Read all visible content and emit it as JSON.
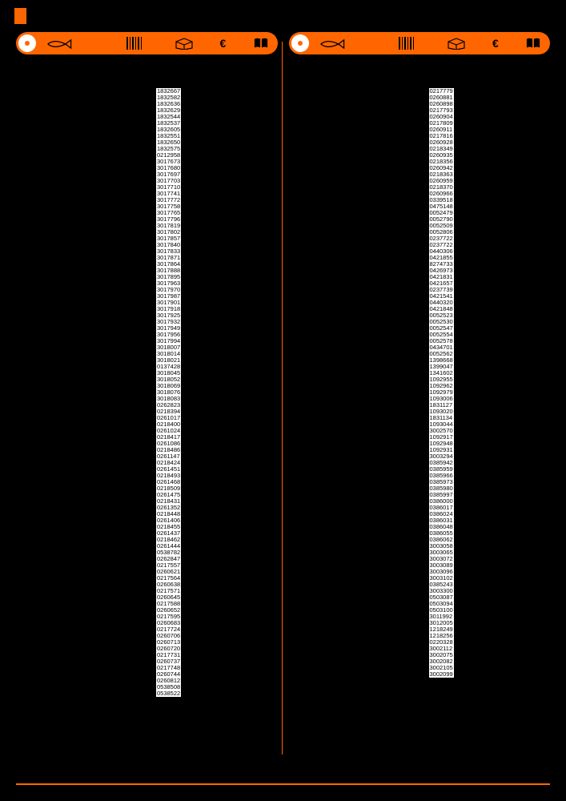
{
  "meta": {
    "background_color": "#000000",
    "accent_color": "#ff6600",
    "code_bg": "#ffffff",
    "code_color": "#000000",
    "code_fontsize": 7.5
  },
  "header_icons": [
    "fish-icon",
    "barcode-icon",
    "package-icon",
    "euro-icon",
    "catalog-icon"
  ],
  "left_codes": [
    "1832667",
    "1832582",
    "1832636",
    "1832629",
    "1832544",
    "1832537",
    "1832605",
    "1832551",
    "1832650",
    "1832575",
    "0212958",
    "3017673",
    "3017680",
    "3017697",
    "3017703",
    "3017710",
    "3017741",
    "3017772",
    "3017758",
    "3017765",
    "3017796",
    "3017819",
    "3017802",
    "3017857",
    "3017840",
    "3017833",
    "3017871",
    "3017864",
    "3017888",
    "3017895",
    "3017963",
    "3017970",
    "3017987",
    "3017901",
    "3017918",
    "3017925",
    "3017932",
    "3017949",
    "3017956",
    "3017994",
    "3018007",
    "3018014",
    "3018021",
    "0137428",
    "3018045",
    "3018052",
    "3018069",
    "3018076",
    "3018083",
    "0262823",
    "0218394",
    "0261017",
    "0218400",
    "0261024",
    "0218417",
    "0261086",
    "0218486",
    "0261147",
    "0218424",
    "0261451",
    "0218493",
    "0261468",
    "0218509",
    "0261475",
    "0218431",
    "0261352",
    "0218448",
    "0261406",
    "0218455",
    "0261437",
    "0218462",
    "0261444",
    "0538782",
    "0262847",
    "0217557",
    "0260621",
    "0217564",
    "0260638",
    "0217571",
    "0260645",
    "0217588",
    "0260652",
    "0217595",
    "0260683",
    "0217724",
    "0260706",
    "0260713",
    "0260720",
    "0217731",
    "0260737",
    "0217748",
    "0260744",
    "0260812",
    "0538508",
    "0538522"
  ],
  "right_codes": [
    "0217779",
    "0260881",
    "0260898",
    "0217793",
    "0260904",
    "0217809",
    "0260911",
    "0217816",
    "0260928",
    "0218349",
    "0260935",
    "0218356",
    "0260942",
    "0218363",
    "0260959",
    "0218370",
    "0260966",
    "0339518",
    "0475148",
    "0052479",
    "0052790",
    "0052509",
    "0052806",
    "0237722",
    "0237722",
    "0440306",
    "0421855",
    "8274733",
    "0426973",
    "0421831",
    "0421657",
    "0237739",
    "0421541",
    "0440320",
    "0421848",
    "0052523",
    "0052530",
    "0052547",
    "0052554",
    "0052578",
    "0434701",
    "0052562",
    "1398668",
    "1399047",
    "1341602",
    "1092955",
    "1092962",
    "1092979",
    "1093006",
    "1831127",
    "1093020",
    "1831134",
    "1093044",
    "3002570",
    "1092917",
    "1092948",
    "1092931",
    "3003294",
    "0385942",
    "0385959",
    "0385966",
    "0385973",
    "0385980",
    "0385997",
    "0386000",
    "0386017",
    "0386024",
    "0386031",
    "0386048",
    "0386055",
    "0386062",
    "3003058",
    "3003065",
    "3003072",
    "3003089",
    "3003096",
    "3003102",
    "0385243",
    "3003300",
    "0503087",
    "0503094",
    "0503100",
    "3011992",
    "3012005",
    "1218249",
    "1218256",
    "0220328",
    "3002112",
    "3002075",
    "3002082",
    "3002105",
    "3002099"
  ]
}
